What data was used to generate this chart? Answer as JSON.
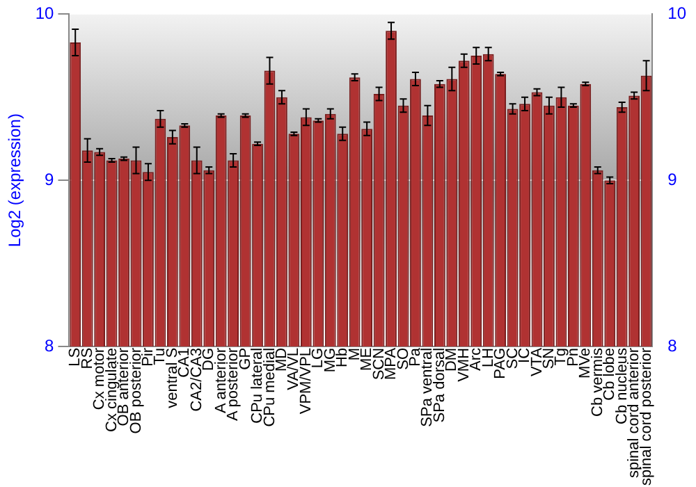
{
  "chart_data": {
    "type": "bar",
    "ylabel": "Log2 (expression)",
    "categories": [
      "LS",
      "RS",
      "Cx motor",
      "Cx cingulate",
      "OB anterior",
      "OB posterior",
      "Pir",
      "Tu",
      "ventral S",
      "CA1",
      "CA2/CA3",
      "DG",
      "A anterior",
      "A posterior",
      "GP",
      "CPu lateral",
      "CPu medial",
      "MD",
      "VA/VL",
      "VPM/VPL",
      "LG",
      "MG",
      "Hb",
      "M",
      "ME",
      "SCN",
      "MPA",
      "SO",
      "Pa",
      "SPa ventral",
      "SPa dorsal",
      "DM",
      "VMH",
      "Arc",
      "LH",
      "PAG",
      "SC",
      "IC",
      "VTA",
      "SN",
      "Tg",
      "Pn",
      "MVe",
      "Cb vermis",
      "Cb lobe",
      "Cb nucleus",
      "spinal cord anterior",
      "spinal cord posterior"
    ],
    "values": [
      9.83,
      9.18,
      9.17,
      9.12,
      9.13,
      9.12,
      9.05,
      9.37,
      9.26,
      9.33,
      9.12,
      9.06,
      9.39,
      9.12,
      9.39,
      9.22,
      9.66,
      9.5,
      9.28,
      9.38,
      9.36,
      9.4,
      9.28,
      9.62,
      9.31,
      9.52,
      9.9,
      9.45,
      9.61,
      9.39,
      9.58,
      9.61,
      9.72,
      9.75,
      9.76,
      9.64,
      9.43,
      9.46,
      9.53,
      9.45,
      9.5,
      9.45,
      9.58,
      9.06,
      9.0,
      9.44,
      9.51,
      9.63
    ],
    "errors": [
      0.08,
      0.07,
      0.02,
      0.01,
      0.01,
      0.08,
      0.05,
      0.05,
      0.04,
      0.01,
      0.08,
      0.02,
      0.01,
      0.04,
      0.01,
      0.01,
      0.08,
      0.04,
      0.01,
      0.05,
      0.01,
      0.03,
      0.04,
      0.02,
      0.04,
      0.04,
      0.05,
      0.04,
      0.04,
      0.06,
      0.02,
      0.07,
      0.04,
      0.05,
      0.04,
      0.01,
      0.03,
      0.04,
      0.02,
      0.05,
      0.06,
      0.01,
      0.01,
      0.02,
      0.02,
      0.03,
      0.02,
      0.09
    ],
    "color": "#b03232",
    "ylim": [
      8,
      10
    ],
    "yticks": [
      8,
      9,
      10
    ],
    "y2lim": [
      8,
      10
    ],
    "y2ticks": [
      8,
      9,
      10
    ],
    "grid": "y",
    "legend": false
  }
}
